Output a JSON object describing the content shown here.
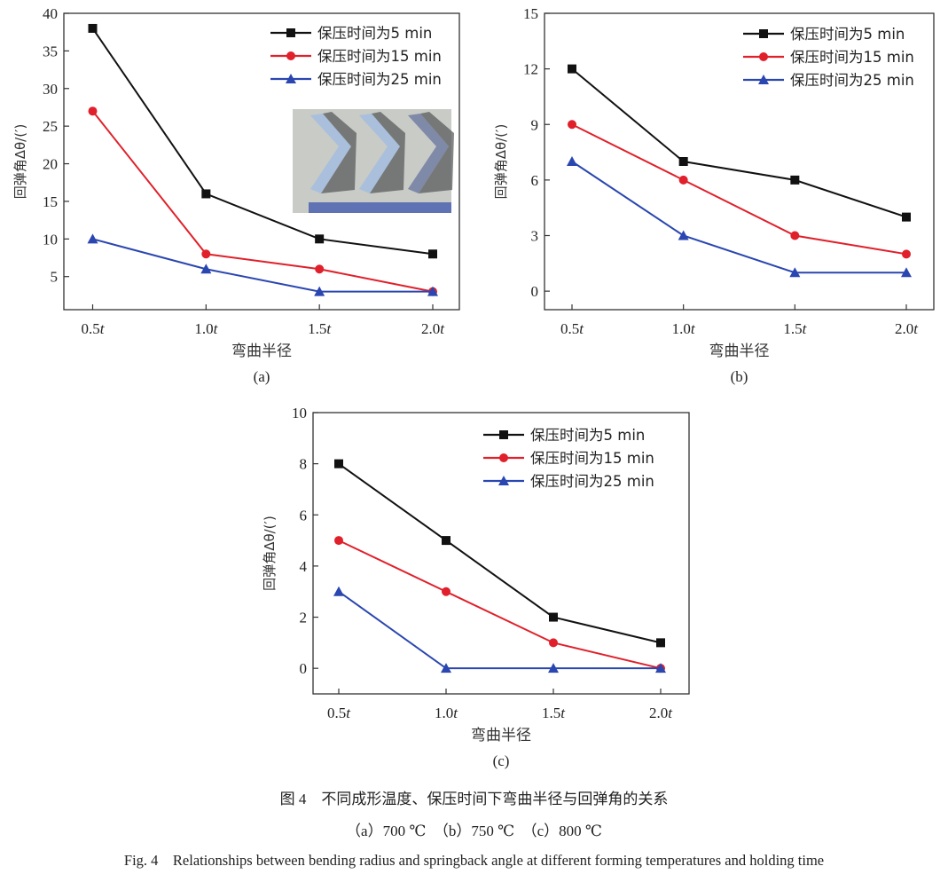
{
  "chart_data": [
    {
      "type": "line",
      "panel_label": "(a)",
      "categories": [
        "0.5t",
        "1.0t",
        "1.5t",
        "2.0t"
      ],
      "xlabel": "弯曲半径",
      "ylabel": "回弹角Δθ/(′)",
      "ylim": [
        0.6,
        40
      ],
      "yticks": [
        5,
        10,
        15,
        20,
        25,
        30,
        35,
        40
      ],
      "legend_position": "top-right",
      "grid": false,
      "inset_photo": true,
      "series": [
        {
          "name": "保压时间为5 min",
          "values": [
            38,
            16,
            10,
            8
          ],
          "color": "#111111",
          "marker": "square"
        },
        {
          "name": "保压时间为15 min",
          "values": [
            27,
            8,
            6,
            3
          ],
          "color": "#e0202a",
          "marker": "circle"
        },
        {
          "name": "保压时间为25 min",
          "values": [
            10,
            6,
            3,
            3
          ],
          "color": "#2a46b0",
          "marker": "triangle"
        }
      ]
    },
    {
      "type": "line",
      "panel_label": "(b)",
      "categories": [
        "0.5t",
        "1.0t",
        "1.5t",
        "2.0t"
      ],
      "xlabel": "弯曲半径",
      "ylabel": "回弹角Δθ/(′)",
      "ylim": [
        -1,
        15
      ],
      "yticks": [
        0,
        3,
        6,
        9,
        12,
        15
      ],
      "legend_position": "top-right",
      "grid": false,
      "series": [
        {
          "name": "保压时间为5 min",
          "values": [
            12,
            7,
            6,
            4
          ],
          "color": "#111111",
          "marker": "square"
        },
        {
          "name": "保压时间为15 min",
          "values": [
            9,
            6,
            3,
            2
          ],
          "color": "#e0202a",
          "marker": "circle"
        },
        {
          "name": "保压时间为25 min",
          "values": [
            7,
            3,
            1,
            1
          ],
          "color": "#2a46b0",
          "marker": "triangle"
        }
      ]
    },
    {
      "type": "line",
      "panel_label": "(c)",
      "categories": [
        "0.5t",
        "1.0t",
        "1.5t",
        "2.0t"
      ],
      "xlabel": "弯曲半径",
      "ylabel": "回弹角Δθ/(′)",
      "ylim": [
        -1,
        10
      ],
      "yticks": [
        0,
        2,
        4,
        6,
        8,
        10
      ],
      "legend_position": "top-right",
      "grid": false,
      "series": [
        {
          "name": "保压时间为5 min",
          "values": [
            8,
            5,
            2,
            1
          ],
          "color": "#111111",
          "marker": "square"
        },
        {
          "name": "保压时间为15 min",
          "values": [
            5,
            3,
            1,
            0
          ],
          "color": "#e0202a",
          "marker": "circle"
        },
        {
          "name": "保压时间为25 min",
          "values": [
            3,
            0,
            0,
            0
          ],
          "color": "#2a46b0",
          "marker": "triangle"
        }
      ]
    }
  ],
  "caption": {
    "zh_title": "图 4　不同成形温度、保压时间下弯曲半径与回弹角的关系",
    "subcaptions": "（a）700 ℃　（b）750 ℃　（c）800 ℃",
    "en_title": "Fig. 4　Relationships between bending radius and springback angle at different forming temperatures and holding time"
  }
}
